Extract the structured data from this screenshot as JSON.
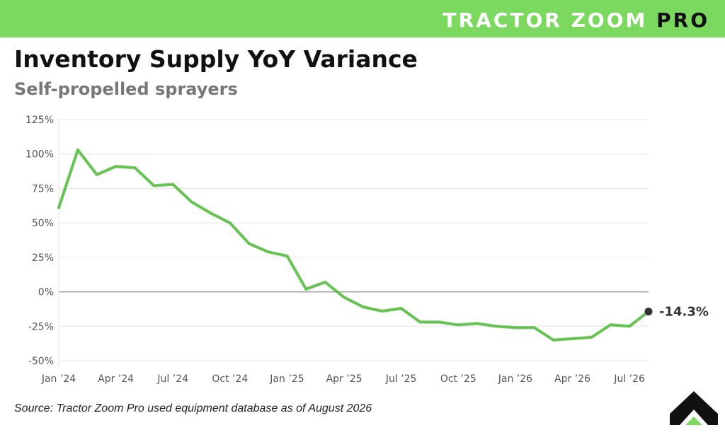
{
  "header": {
    "brand_light": "TRACTOR ZOOM",
    "brand_dark": "PRO"
  },
  "title": "Inventory Supply YoY Variance",
  "subtitle": "Self-propelled sprayers",
  "source": "Source: Tractor Zoom Pro used equipment database as of August 2026",
  "colors": {
    "accent": "#7bd95f",
    "line": "#5cc445",
    "zero_line": "#999999",
    "end_marker": "#333333"
  },
  "logo_icon": "tractor-zoom-chevron-icon",
  "chart_data": {
    "type": "line",
    "x": [
      "Jan '24",
      "Feb '24",
      "Mar '24",
      "Apr '24",
      "May '24",
      "Jun '24",
      "Jul '24",
      "Aug '24",
      "Sep '24",
      "Oct '24",
      "Nov '24",
      "Dec '24",
      "Jan '25",
      "Feb '25",
      "Mar '25",
      "Apr '25",
      "May '25",
      "Jun '25",
      "Jul '25",
      "Aug '25",
      "Sep '25",
      "Oct '25",
      "Nov '25",
      "Dec '25",
      "Jan '26",
      "Feb '26",
      "Mar '26",
      "Apr '26",
      "May '26",
      "Jun '26",
      "Jul '26",
      "Aug '26"
    ],
    "values": [
      61,
      103,
      85,
      91,
      90,
      77,
      78,
      65,
      57,
      50,
      35,
      29,
      26,
      2,
      7,
      -4,
      -11,
      -14,
      -12,
      -22,
      -22,
      -24,
      -23,
      -25,
      -26,
      -26,
      -35,
      -34,
      -33,
      -24,
      -25,
      -14.3
    ],
    "x_ticks": [
      "Jan ’24",
      "Apr ’24",
      "Jul ’24",
      "Oct ’24",
      "Jan ’25",
      "Apr ’25",
      "Jul ’25",
      "Oct ’25",
      "Jan ’26",
      "Apr ’26",
      "Jul ’26"
    ],
    "x_tick_index": [
      0,
      3,
      6,
      9,
      12,
      15,
      18,
      21,
      24,
      27,
      30
    ],
    "y_ticks": [
      "125%",
      "100%",
      "75%",
      "50%",
      "25%",
      "0%",
      "-25%",
      "-50%"
    ],
    "y_tick_values": [
      125,
      100,
      75,
      50,
      25,
      0,
      -25,
      -50
    ],
    "ylim": [
      -55,
      125
    ],
    "end_label": "-14.3%",
    "grid": true,
    "xlabel": "",
    "ylabel": ""
  }
}
